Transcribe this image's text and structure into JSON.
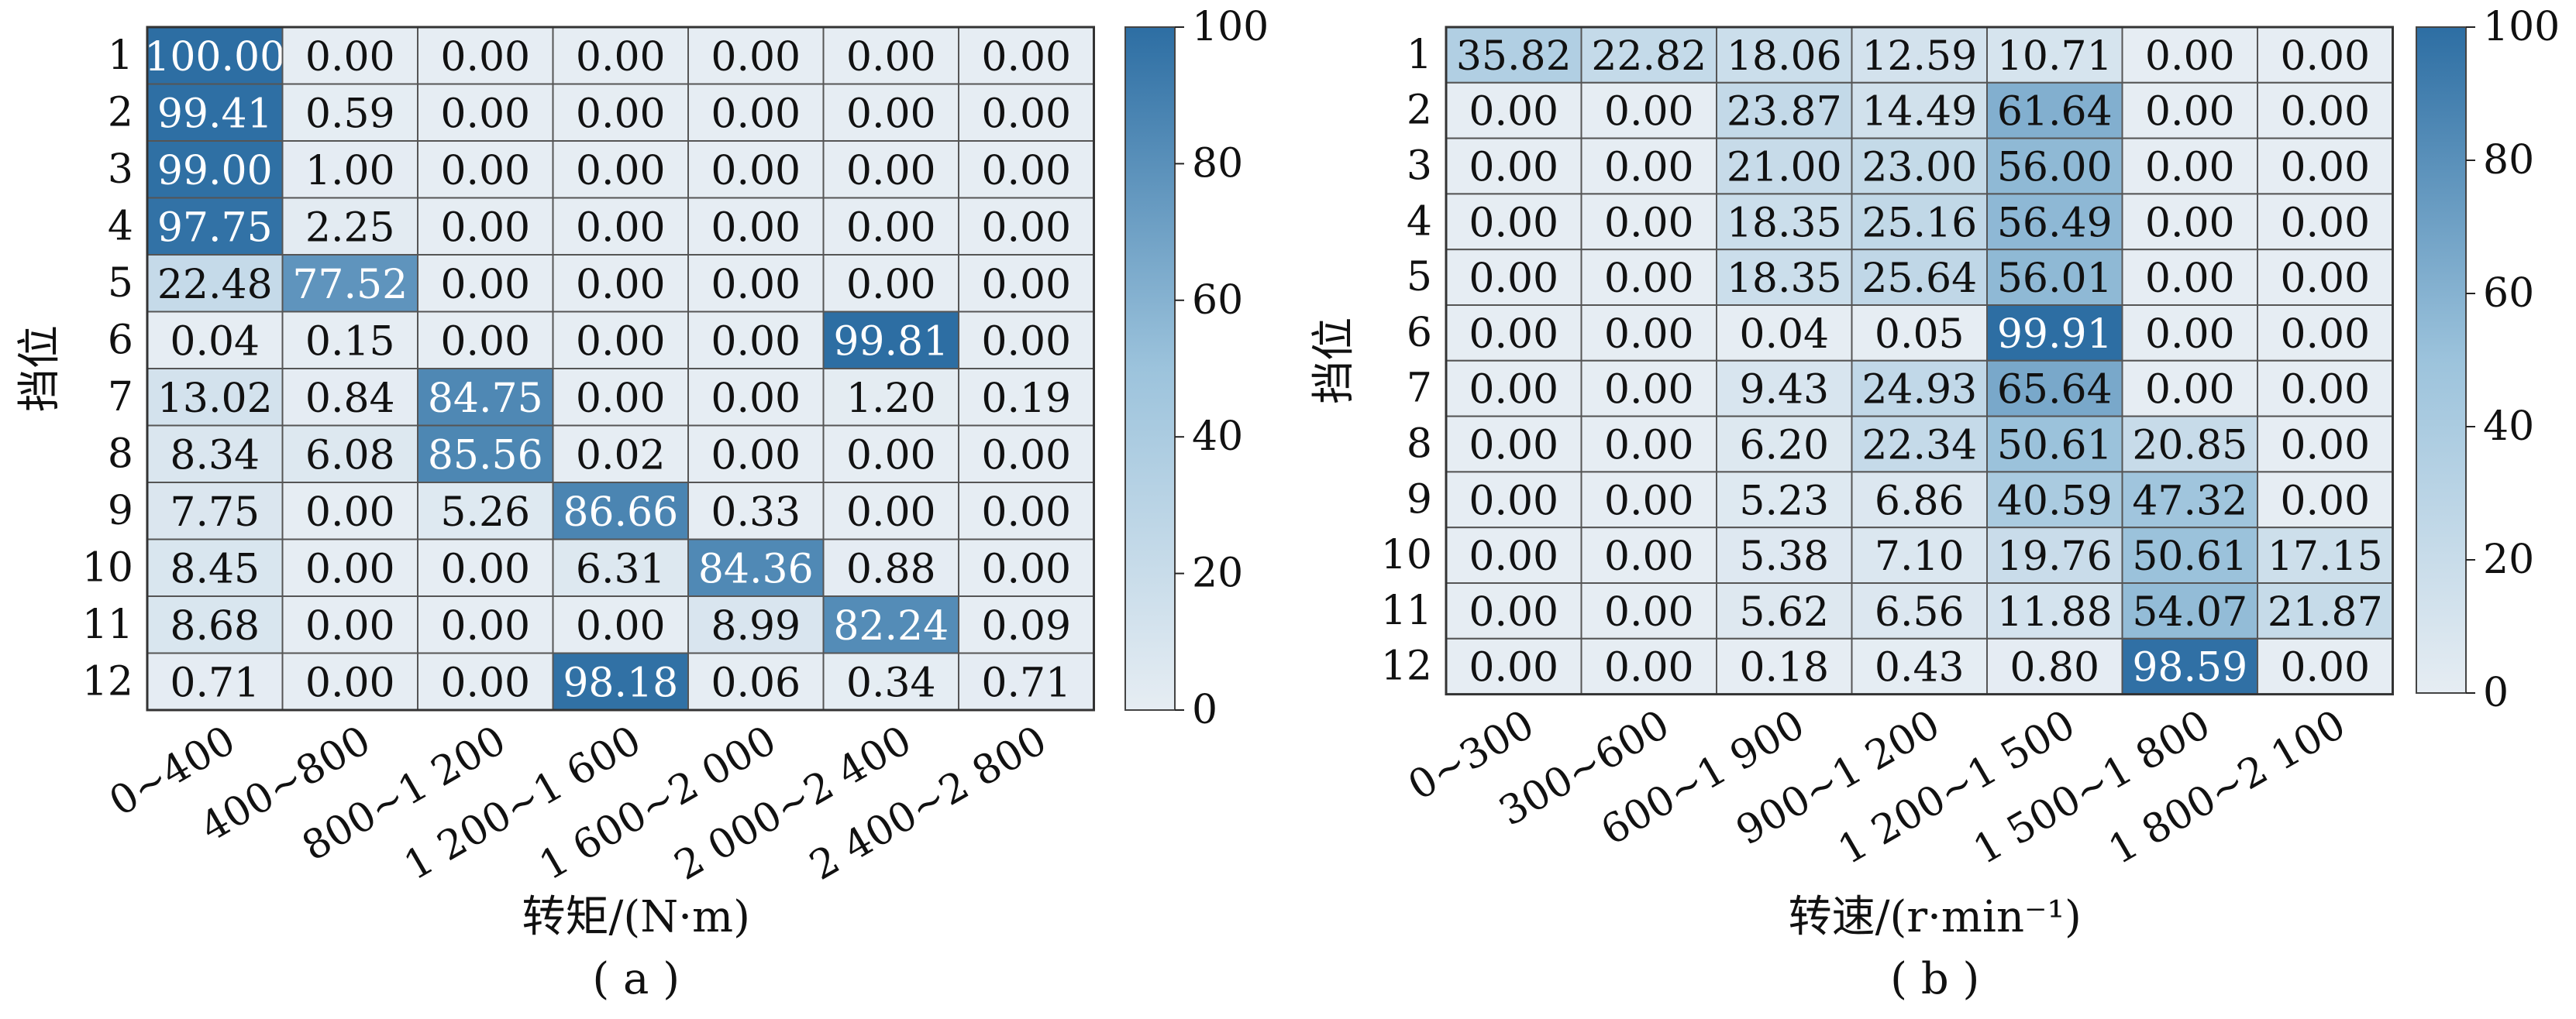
{
  "chart_data": [
    {
      "type": "heatmap",
      "panel_label": "( a )",
      "xlabel": "转矩/(N·m)",
      "ylabel": "挡位",
      "rows": [
        "1",
        "2",
        "3",
        "4",
        "5",
        "6",
        "7",
        "8",
        "9",
        "10",
        "11",
        "12"
      ],
      "columns": [
        "0~400",
        "400~800",
        "800~1 200",
        "1 200~1 600",
        "1 600~2 000",
        "2 000~2 400",
        "2 400~2 800"
      ],
      "values": [
        [
          100.0,
          0.0,
          0.0,
          0.0,
          0.0,
          0.0,
          0.0
        ],
        [
          99.41,
          0.59,
          0.0,
          0.0,
          0.0,
          0.0,
          0.0
        ],
        [
          99.0,
          1.0,
          0.0,
          0.0,
          0.0,
          0.0,
          0.0
        ],
        [
          97.75,
          2.25,
          0.0,
          0.0,
          0.0,
          0.0,
          0.0
        ],
        [
          22.48,
          77.52,
          0.0,
          0.0,
          0.0,
          0.0,
          0.0
        ],
        [
          0.04,
          0.15,
          0.0,
          0.0,
          0.0,
          99.81,
          0.0
        ],
        [
          13.02,
          0.84,
          84.75,
          0.0,
          0.0,
          1.2,
          0.19
        ],
        [
          8.34,
          6.08,
          85.56,
          0.02,
          0.0,
          0.0,
          0.0
        ],
        [
          7.75,
          0.0,
          5.26,
          86.66,
          0.33,
          0.0,
          0.0
        ],
        [
          8.45,
          0.0,
          0.0,
          6.31,
          84.36,
          0.88,
          0.0
        ],
        [
          8.68,
          0.0,
          0.0,
          0.0,
          8.99,
          82.24,
          0.09
        ],
        [
          0.71,
          0.0,
          0.0,
          98.18,
          0.06,
          0.34,
          0.71
        ]
      ],
      "colorbar": {
        "range": [
          0,
          100
        ],
        "ticks": [
          "0",
          "20",
          "40",
          "60",
          "80",
          "100"
        ]
      }
    },
    {
      "type": "heatmap",
      "panel_label": "( b )",
      "xlabel": "转速/(r·min⁻¹)",
      "ylabel": "挡位",
      "rows": [
        "1",
        "2",
        "3",
        "4",
        "5",
        "6",
        "7",
        "8",
        "9",
        "10",
        "11",
        "12"
      ],
      "columns": [
        "0~300",
        "300~600",
        "600~1 900",
        "900~1 200",
        "1 200~1 500",
        "1 500~1 800",
        "1 800~2 100"
      ],
      "values": [
        [
          35.82,
          22.82,
          18.06,
          12.59,
          10.71,
          0.0,
          0.0
        ],
        [
          0.0,
          0.0,
          23.87,
          14.49,
          61.64,
          0.0,
          0.0
        ],
        [
          0.0,
          0.0,
          21.0,
          23.0,
          56.0,
          0.0,
          0.0
        ],
        [
          0.0,
          0.0,
          18.35,
          25.16,
          56.49,
          0.0,
          0.0
        ],
        [
          0.0,
          0.0,
          18.35,
          25.64,
          56.01,
          0.0,
          0.0
        ],
        [
          0.0,
          0.0,
          0.04,
          0.05,
          99.91,
          0.0,
          0.0
        ],
        [
          0.0,
          0.0,
          9.43,
          24.93,
          65.64,
          0.0,
          0.0
        ],
        [
          0.0,
          0.0,
          6.2,
          22.34,
          50.61,
          20.85,
          0.0
        ],
        [
          0.0,
          0.0,
          5.23,
          6.86,
          40.59,
          47.32,
          0.0
        ],
        [
          0.0,
          0.0,
          5.38,
          7.1,
          19.76,
          50.61,
          17.15
        ],
        [
          0.0,
          0.0,
          5.62,
          6.56,
          11.88,
          54.07,
          21.87
        ],
        [
          0.0,
          0.0,
          0.18,
          0.43,
          0.8,
          98.59,
          0.0
        ]
      ],
      "colorbar": {
        "range": [
          0,
          100
        ],
        "ticks": [
          "0",
          "20",
          "40",
          "60",
          "80",
          "100"
        ]
      }
    }
  ],
  "colors": {
    "low": "#e6edf3",
    "mid": "#9cc3dc",
    "high": "#2d6ea3",
    "grid": "#555555",
    "text_dark": "#111111",
    "text_light": "#ffffff"
  }
}
